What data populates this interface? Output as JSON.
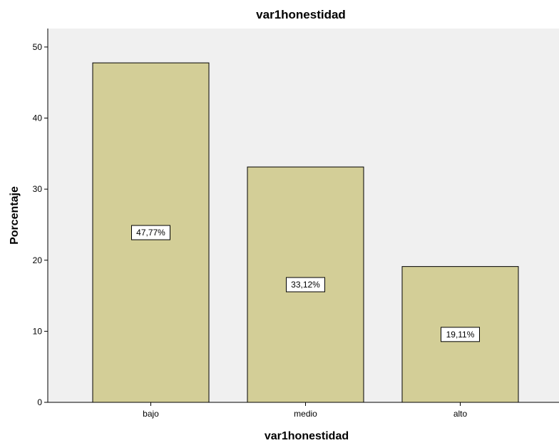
{
  "chart_data": {
    "type": "bar",
    "title": "var1honestidad",
    "xlabel": "var1honestidad",
    "ylabel": "Porcentaje",
    "categories": [
      "bajo",
      "medio",
      "alto"
    ],
    "values": [
      47.77,
      33.12,
      19.11
    ],
    "data_labels": [
      "47,77%",
      "33,12%",
      "19,11%"
    ],
    "ylim": [
      0,
      52.6
    ],
    "yticks": [
      0,
      10,
      20,
      30,
      40,
      50
    ],
    "grid": false,
    "legend": "none",
    "colors": {
      "plot_background": "#f0f0f0",
      "bar_fill": "#d3ce97",
      "bar_stroke": "#000000"
    }
  }
}
